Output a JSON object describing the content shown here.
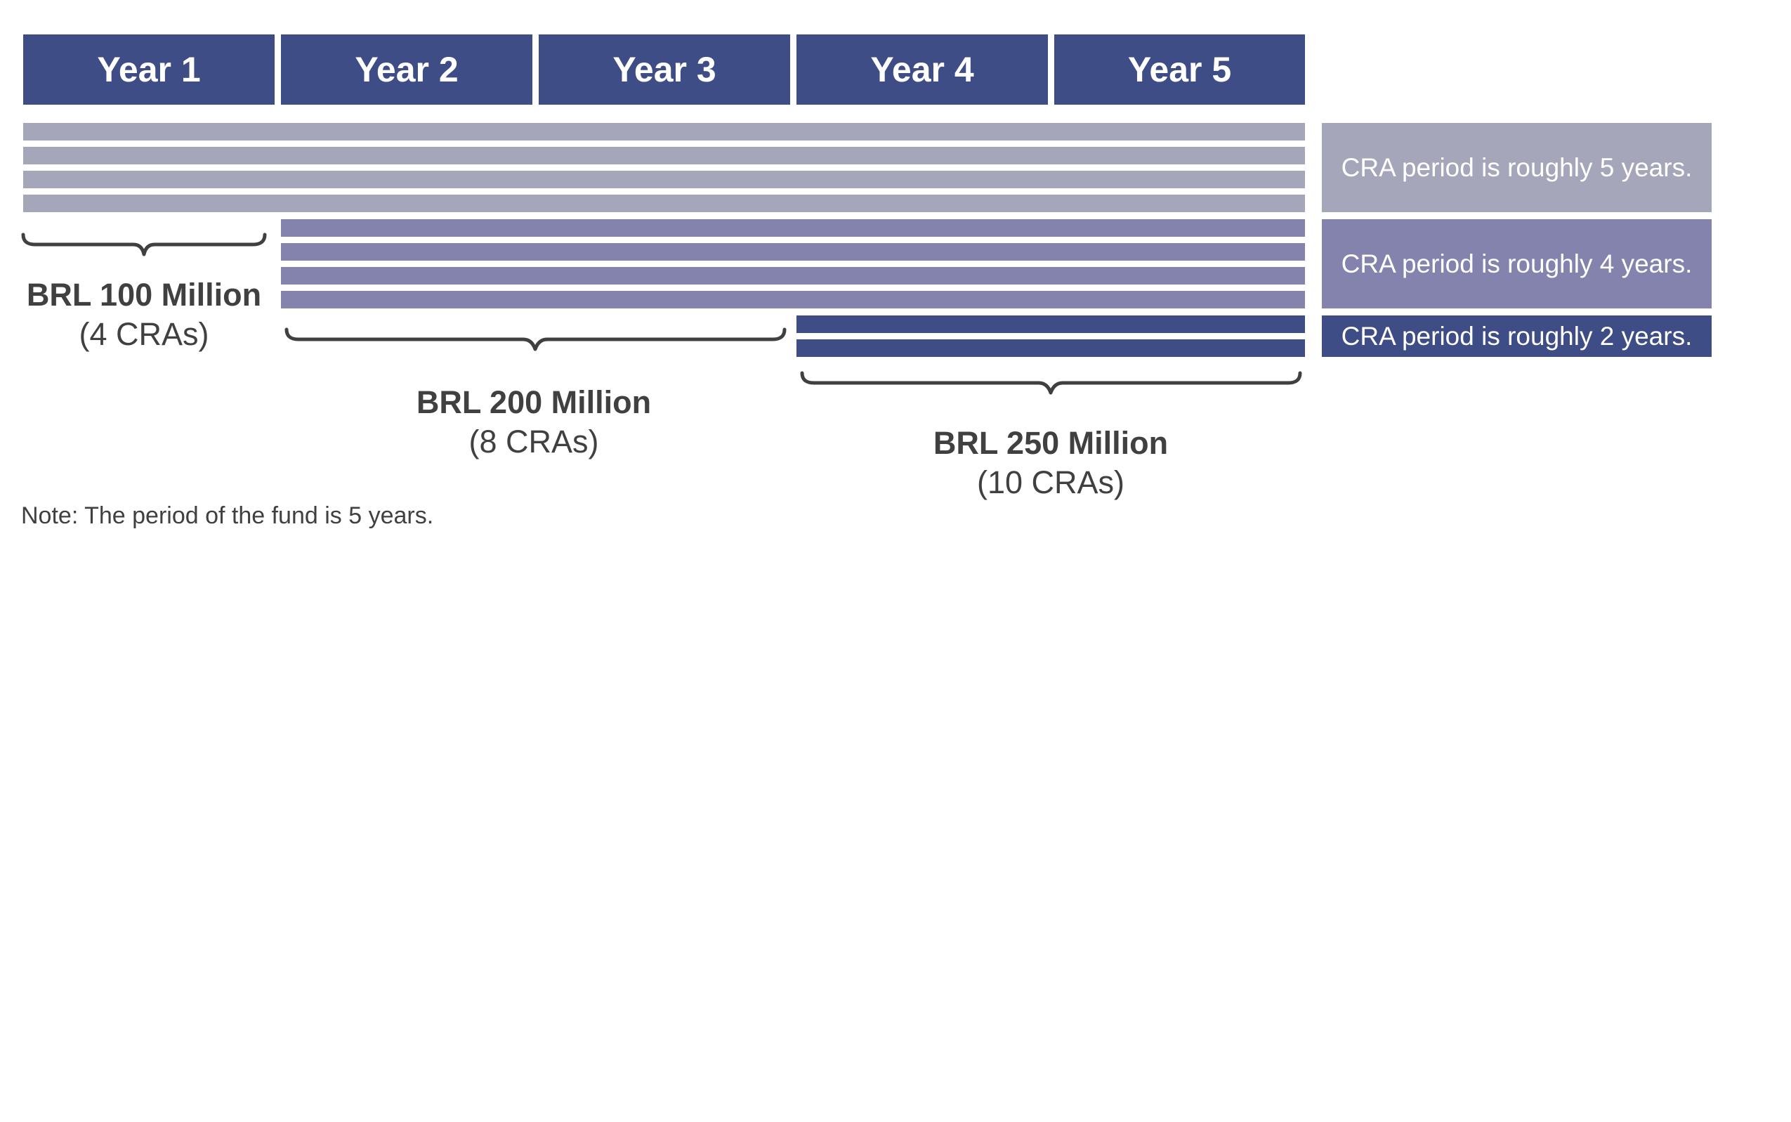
{
  "years": [
    "Year 1",
    "Year 2",
    "Year 3",
    "Year 4",
    "Year 5"
  ],
  "colors": {
    "header": "#3f4d87",
    "five_year": "#a6a6bb",
    "four_year": "#8483ae",
    "two_year": "#3f4d87",
    "text": "#404040"
  },
  "groups": [
    {
      "amount": "BRL 100 Million",
      "count": "(4 CRAs)",
      "cras": 4,
      "start_year": 1,
      "period_years": 5,
      "period_label": "CRA period is roughly 5 years."
    },
    {
      "amount": "BRL 200 Million",
      "count": "(8 CRAs)",
      "cras": 4,
      "start_year": 2,
      "period_years": 4,
      "period_label": "CRA period is roughly 4 years."
    },
    {
      "amount": "BRL 250 Million",
      "count": "(10 CRAs)",
      "cras": 2,
      "start_year": 4,
      "period_years": 2,
      "period_label": "CRA period is roughly 2 years."
    }
  ],
  "note": "Note: The period of the fund is 5 years."
}
